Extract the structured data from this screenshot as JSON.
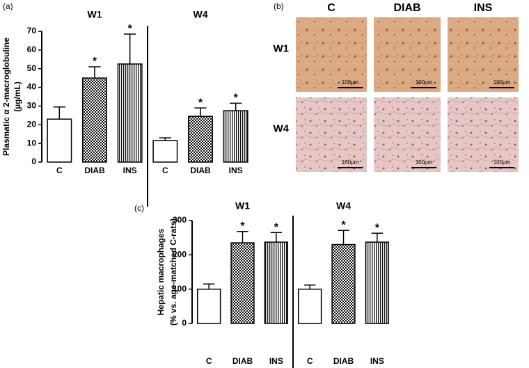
{
  "chart_data": [
    {
      "type": "bar",
      "panel": "(a)",
      "groups": [
        "W1",
        "W4"
      ],
      "ylabel": [
        "Plasmatic α 2-macroglobuline",
        "(µg/mL)"
      ],
      "categories": [
        "C",
        "DIAB",
        "INS",
        "C",
        "DIAB",
        "INS"
      ],
      "values": [
        23,
        45,
        52.5,
        11.5,
        24.5,
        27.5
      ],
      "errors": [
        6.5,
        6,
        16,
        1.5,
        4.5,
        4
      ],
      "fills": [
        "white",
        "crosshatch",
        "vertical-lines",
        "white",
        "crosshatch",
        "vertical-lines"
      ],
      "value_marks": [
        null,
        "*",
        "*",
        null,
        "*",
        "*"
      ],
      "color": "#000000",
      "ylim": [
        0,
        70
      ],
      "yticks": [
        0,
        10,
        20,
        30,
        40,
        50,
        60,
        70
      ]
    },
    {
      "type": "bar",
      "panel": "(c)",
      "groups": [
        "W1",
        "W4"
      ],
      "ylabel": [
        "Hepatic macrophages",
        "(% vs. age-matched C-rats)"
      ],
      "categories": [
        "C",
        "DIAB",
        "INS",
        "C",
        "DIAB",
        "INS"
      ],
      "values": [
        100,
        235,
        237,
        100,
        230,
        237
      ],
      "errors": [
        15,
        33,
        28,
        12,
        41,
        26
      ],
      "fills": [
        "white",
        "crosshatch",
        "vertical-lines",
        "white",
        "crosshatch",
        "vertical-lines"
      ],
      "value_marks": [
        null,
        "*",
        "*",
        null,
        "*",
        "*"
      ],
      "color": "#000000",
      "ylim": [
        0,
        300
      ],
      "yticks": [
        0,
        100,
        200,
        300
      ]
    }
  ],
  "micrographs": {
    "panel": "(b)",
    "columns": [
      "C",
      "DIAB",
      "INS"
    ],
    "rows": [
      "W1",
      "W4"
    ],
    "scale_bar": "100µm"
  }
}
